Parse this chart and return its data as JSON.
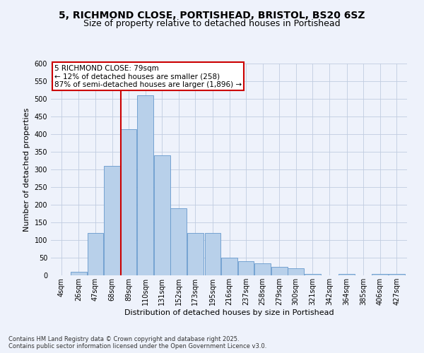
{
  "title_line1": "5, RICHMOND CLOSE, PORTISHEAD, BRISTOL, BS20 6SZ",
  "title_line2": "Size of property relative to detached houses in Portishead",
  "xlabel": "Distribution of detached houses by size in Portishead",
  "ylabel": "Number of detached properties",
  "footer": "Contains HM Land Registry data © Crown copyright and database right 2025.\nContains public sector information licensed under the Open Government Licence v3.0.",
  "bin_labels": [
    "4sqm",
    "26sqm",
    "47sqm",
    "68sqm",
    "89sqm",
    "110sqm",
    "131sqm",
    "152sqm",
    "173sqm",
    "195sqm",
    "216sqm",
    "237sqm",
    "258sqm",
    "279sqm",
    "300sqm",
    "321sqm",
    "342sqm",
    "364sqm",
    "385sqm",
    "406sqm",
    "427sqm"
  ],
  "bar_values": [
    0,
    10,
    120,
    310,
    415,
    510,
    340,
    190,
    120,
    120,
    50,
    40,
    35,
    25,
    20,
    5,
    0,
    5,
    0,
    5,
    5
  ],
  "bar_color": "#b8d0ea",
  "bar_edge_color": "#6699cc",
  "vline_x": 79,
  "vline_color": "#cc0000",
  "ylim": [
    0,
    600
  ],
  "yticks": [
    0,
    50,
    100,
    150,
    200,
    250,
    300,
    350,
    400,
    450,
    500,
    550,
    600
  ],
  "annotation_title": "5 RICHMOND CLOSE: 79sqm",
  "annotation_line1": "← 12% of detached houses are smaller (258)",
  "annotation_line2": "87% of semi-detached houses are larger (1,896) →",
  "annotation_box_color": "#cc0000",
  "bg_color": "#eef2fb",
  "plot_bg_color": "#eef2fb",
  "title_fontsize": 10,
  "subtitle_fontsize": 9,
  "axis_label_fontsize": 8,
  "tick_fontsize": 7,
  "annotation_fontsize": 7.5,
  "footer_fontsize": 6
}
